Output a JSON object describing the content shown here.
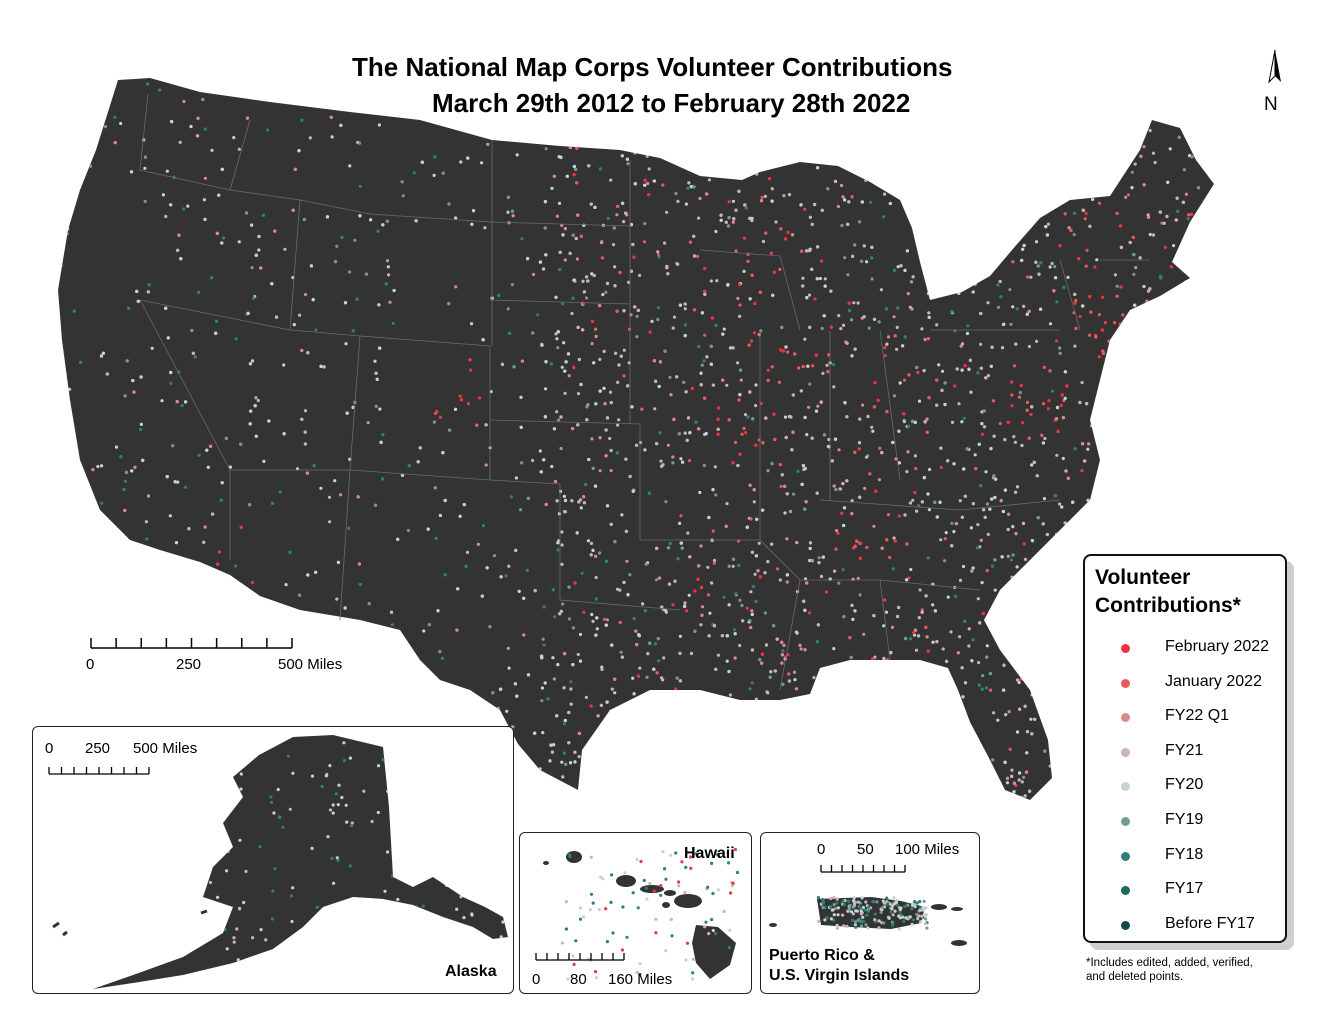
{
  "title": {
    "line1": "The National Map Corps Volunteer Contributions",
    "line2": "March 29th 2012 to February 28th 2022"
  },
  "north_arrow": {
    "letter": "N",
    "icon": "north-arrow-icon"
  },
  "scales": {
    "conus": {
      "labels": [
        "0",
        "250",
        "500 Miles"
      ]
    },
    "alaska": {
      "labels": [
        "0",
        "250",
        "500 Miles"
      ]
    },
    "hawaii": {
      "labels": [
        "0",
        "80",
        "160 Miles"
      ]
    },
    "puerto_rico": {
      "labels": [
        "0",
        "50",
        "100 Miles"
      ]
    }
  },
  "insets": {
    "alaska": "Alaska",
    "hawaii": "Hawaii",
    "puerto_rico_line1": "Puerto Rico &",
    "puerto_rico_line2": "U.S. Virgin Islands"
  },
  "legend": {
    "title_line1": "Volunteer",
    "title_line2": "Contributions*",
    "items": [
      {
        "label": "February 2022",
        "color": "#f0343f"
      },
      {
        "label": "January 2022",
        "color": "#e85a60"
      },
      {
        "label": "FY22 Q1",
        "color": "#d88a8c"
      },
      {
        "label": "FY21",
        "color": "#c9b5b3"
      },
      {
        "label": "FY20",
        "color": "#c6d3d0"
      },
      {
        "label": "FY19",
        "color": "#6f9c95"
      },
      {
        "label": "FY18",
        "color": "#2f7f79"
      },
      {
        "label": "FY17",
        "color": "#1c6760"
      },
      {
        "label": "Before FY17",
        "color": "#0f4a46"
      }
    ]
  },
  "footnote": {
    "line1": "*Includes edited, added, verified,",
    "line2": "and deleted points."
  },
  "colors": {
    "land": "#333333",
    "state_lines": "#6a6a6a"
  }
}
